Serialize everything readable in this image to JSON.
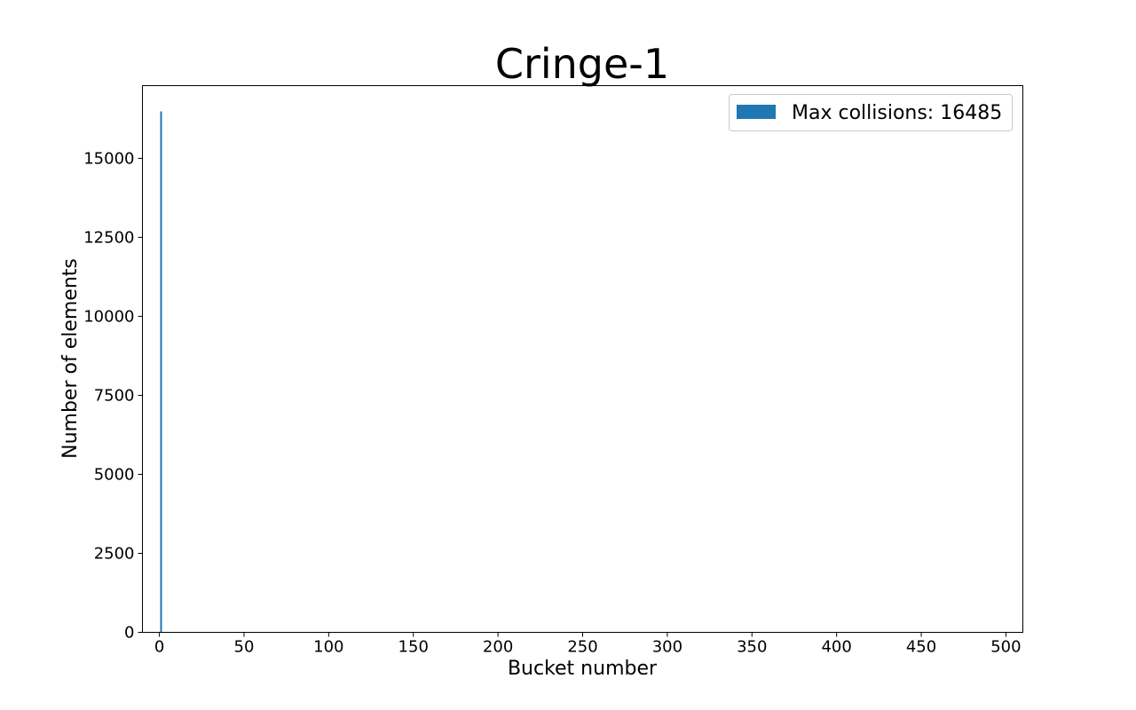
{
  "chart_data": {
    "type": "bar",
    "title": "Cringe-1",
    "xlabel": "Bucket number",
    "ylabel": "Number of elements",
    "xlim": [
      -10,
      510
    ],
    "ylim": [
      0,
      17300
    ],
    "xticks": [
      0,
      50,
      100,
      150,
      200,
      250,
      300,
      350,
      400,
      450,
      500
    ],
    "yticks": [
      0,
      2500,
      5000,
      7500,
      10000,
      12500,
      15000
    ],
    "grid": false,
    "legend": {
      "placement": "top-right",
      "entries": [
        "Max collisions: 16485"
      ]
    },
    "series": [
      {
        "name": "Max collisions: 16485",
        "color": "#1f77b4",
        "x": [
          1
        ],
        "values": [
          16485
        ]
      }
    ]
  }
}
